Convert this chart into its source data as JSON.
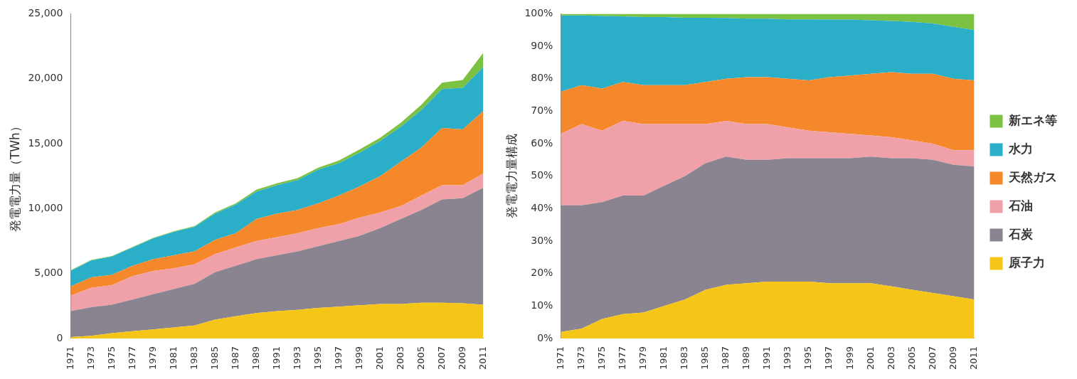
{
  "chart_data": [
    {
      "type": "area",
      "ylabel": "発電電力量（TWh）",
      "stacked": true,
      "grid": false,
      "legend": false,
      "x": [
        1971,
        1973,
        1975,
        1977,
        1979,
        1981,
        1983,
        1985,
        1987,
        1989,
        1991,
        1993,
        1995,
        1997,
        1999,
        2001,
        2003,
        2005,
        2007,
        2009,
        2011
      ],
      "xlim": [
        1971,
        2011
      ],
      "xticks": [
        1971,
        1973,
        1975,
        1977,
        1979,
        1981,
        1983,
        1985,
        1987,
        1989,
        1991,
        1993,
        1995,
        1997,
        1999,
        2001,
        2003,
        2005,
        2007,
        2009,
        2011
      ],
      "ylim": [
        0,
        25000
      ],
      "yticks": [
        0,
        {
          "value": 5000,
          "label": "5,000"
        },
        {
          "value": 10000,
          "label": "10,000"
        },
        {
          "value": 15000,
          "label": "15,000"
        },
        {
          "value": 20000,
          "label": "20,000"
        },
        {
          "value": 25000,
          "label": "25,000"
        }
      ],
      "series": [
        {
          "color": "#f5c518",
          "values": [
            100,
            200,
            400,
            550,
            700,
            850,
            1000,
            1450,
            1700,
            1950,
            2100,
            2200,
            2350,
            2450,
            2550,
            2650,
            2650,
            2750,
            2750,
            2700,
            2600
          ]
        },
        {
          "color": "#8a8490",
          "values": [
            2000,
            2200,
            2200,
            2450,
            2700,
            2950,
            3200,
            3650,
            3900,
            4150,
            4300,
            4500,
            4750,
            5050,
            5350,
            5850,
            6550,
            7150,
            7950,
            8100,
            9000
          ]
        },
        {
          "color": "#f0a0a8",
          "values": [
            1200,
            1500,
            1500,
            1800,
            1800,
            1600,
            1500,
            1400,
            1400,
            1400,
            1400,
            1400,
            1400,
            1300,
            1400,
            1200,
            1000,
            1100,
            1100,
            1000,
            1100
          ]
        },
        {
          "color": "#f5882a",
          "values": [
            700,
            800,
            800,
            800,
            900,
            1000,
            1000,
            1100,
            1100,
            1700,
            1800,
            1800,
            1900,
            2200,
            2400,
            2800,
            3400,
            3700,
            4400,
            4300,
            4800
          ]
        },
        {
          "color": "#2bafc8",
          "values": [
            1200,
            1300,
            1400,
            1400,
            1600,
            1800,
            1900,
            2000,
            2200,
            2100,
            2200,
            2300,
            2600,
            2500,
            2600,
            2700,
            2700,
            2900,
            3000,
            3200,
            3400
          ]
        },
        {
          "color": "#7cc142",
          "values": [
            50,
            50,
            50,
            50,
            50,
            50,
            50,
            100,
            100,
            150,
            150,
            150,
            150,
            200,
            250,
            250,
            300,
            400,
            500,
            600,
            1100
          ]
        }
      ]
    },
    {
      "type": "area",
      "ylabel": "発電電力量構成",
      "stacked": true,
      "grid": false,
      "legend": "right",
      "x": [
        1971,
        1973,
        1975,
        1977,
        1979,
        1981,
        1983,
        1985,
        1987,
        1989,
        1991,
        1993,
        1995,
        1997,
        1999,
        2001,
        2003,
        2005,
        2007,
        2009,
        2011
      ],
      "xlim": [
        1971,
        2011
      ],
      "xticks": [
        1971,
        1973,
        1975,
        1977,
        1979,
        1981,
        1983,
        1985,
        1987,
        1989,
        1991,
        1993,
        1995,
        1997,
        1999,
        2001,
        2003,
        2005,
        2007,
        2009,
        2011
      ],
      "ylim": [
        0,
        100
      ],
      "yticks": [
        {
          "value": 0,
          "label": "0%"
        },
        {
          "value": 10,
          "label": "10%"
        },
        {
          "value": 20,
          "label": "20%"
        },
        {
          "value": 30,
          "label": "30%"
        },
        {
          "value": 40,
          "label": "40%"
        },
        {
          "value": 50,
          "label": "50%"
        },
        {
          "value": 60,
          "label": "60%"
        },
        {
          "value": 70,
          "label": "70%"
        },
        {
          "value": 80,
          "label": "80%"
        },
        {
          "value": 90,
          "label": "90%"
        },
        {
          "value": 100,
          "label": "100%"
        }
      ],
      "series": [
        {
          "name": "原子力",
          "color": "#f5c518",
          "values": [
            2,
            3,
            6,
            7.5,
            8,
            10,
            12,
            15,
            16.5,
            17,
            17.5,
            17.5,
            17.5,
            17,
            17,
            17,
            16,
            15,
            14,
            13,
            12
          ]
        },
        {
          "name": "石炭",
          "color": "#8a8490",
          "values": [
            39,
            38,
            36,
            36.5,
            36,
            37,
            38,
            39,
            39.5,
            38,
            37.5,
            38,
            38,
            38.5,
            38.5,
            39,
            39.5,
            40.5,
            41,
            40.5,
            41
          ]
        },
        {
          "name": "石油",
          "color": "#f0a0a8",
          "values": [
            22,
            25,
            22,
            23,
            22,
            19,
            16,
            12,
            11,
            11,
            11,
            9.5,
            8.5,
            8,
            7.5,
            6.5,
            6.5,
            5.5,
            5,
            4.5,
            5
          ]
        },
        {
          "name": "天然ガス",
          "color": "#f5882a",
          "values": [
            13,
            12,
            13,
            12,
            12,
            12,
            12,
            13,
            13,
            14.5,
            14.5,
            15,
            15.5,
            17,
            18,
            19,
            20,
            20.5,
            21.5,
            22,
            21.5
          ]
        },
        {
          "name": "水力",
          "color": "#2bafc8",
          "values": [
            23.5,
            21.5,
            22.3,
            20.2,
            21,
            21,
            20.8,
            19.8,
            18.7,
            18,
            18,
            18.3,
            18.8,
            17.7,
            17.2,
            16.5,
            15.8,
            16,
            15.5,
            16,
            15.5
          ]
        },
        {
          "name": "新エネ等",
          "color": "#7cc142",
          "values": [
            0.5,
            0.5,
            0.7,
            0.8,
            1,
            1,
            1.2,
            1.2,
            1.3,
            1.5,
            1.5,
            1.7,
            1.7,
            1.8,
            1.8,
            2,
            2.2,
            2.5,
            3,
            4,
            5
          ]
        }
      ]
    }
  ]
}
